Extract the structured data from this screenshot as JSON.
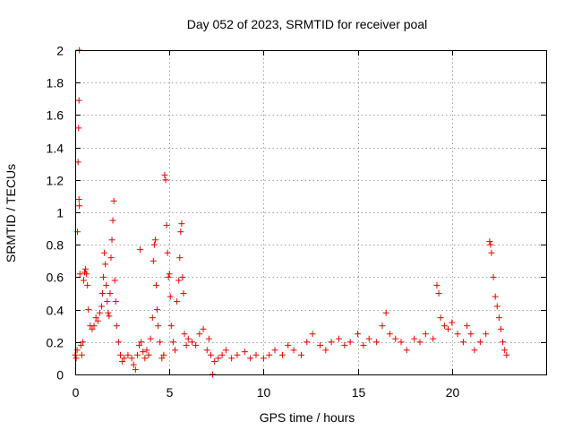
{
  "chart_data": {
    "type": "scatter",
    "title": "Day 052 of 2023, SRMTID for receiver poal",
    "xlabel": "GPS time / hours",
    "ylabel": "SRMTID / TECUs",
    "xlim": [
      0,
      25
    ],
    "ylim": [
      0,
      2
    ],
    "xticks": [
      0,
      5,
      10,
      15,
      20
    ],
    "yticks": [
      0,
      0.2,
      0.4,
      0.6,
      0.8,
      1,
      1.2,
      1.4,
      1.6,
      1.8,
      2
    ],
    "ytick_labels": [
      "0",
      "0.2",
      "0.4",
      "0.6",
      "0.8",
      "1",
      "1.2",
      "1.4",
      "1.6",
      "1.8",
      "2"
    ],
    "grid": true,
    "marker": "+",
    "color": "#ee0000",
    "series": [
      {
        "name": "SRMTID",
        "description": "scatter of SRMTID values vs GPS time; values approximated from the plotted points",
        "points": [
          [
            0.0,
            0.12
          ],
          [
            0.05,
            0.1
          ],
          [
            0.1,
            0.15
          ],
          [
            0.12,
            0.88
          ],
          [
            0.15,
            1.31
          ],
          [
            0.18,
            1.52
          ],
          [
            0.2,
            1.69
          ],
          [
            0.22,
            2.0
          ],
          [
            0.2,
            1.08
          ],
          [
            0.22,
            1.04
          ],
          [
            0.25,
            0.62
          ],
          [
            0.3,
            0.18
          ],
          [
            0.35,
            0.12
          ],
          [
            0.4,
            0.2
          ],
          [
            0.45,
            0.58
          ],
          [
            0.5,
            0.63
          ],
          [
            0.55,
            0.65
          ],
          [
            0.6,
            0.62
          ],
          [
            0.65,
            0.55
          ],
          [
            0.7,
            0.4
          ],
          [
            0.8,
            0.3
          ],
          [
            0.9,
            0.28
          ],
          [
            1.0,
            0.3
          ],
          [
            1.1,
            0.35
          ],
          [
            1.2,
            0.33
          ],
          [
            1.3,
            0.38
          ],
          [
            1.4,
            0.42
          ],
          [
            1.45,
            0.5
          ],
          [
            1.5,
            0.6
          ],
          [
            1.55,
            0.75
          ],
          [
            1.6,
            0.68
          ],
          [
            1.65,
            0.55
          ],
          [
            1.7,
            0.45
          ],
          [
            1.75,
            0.38
          ],
          [
            1.8,
            0.36
          ],
          [
            1.85,
            0.5
          ],
          [
            1.9,
            0.72
          ],
          [
            1.95,
            0.83
          ],
          [
            2.0,
            0.95
          ],
          [
            2.05,
            1.07
          ],
          [
            2.1,
            0.58
          ],
          [
            2.15,
            0.45
          ],
          [
            2.2,
            0.3
          ],
          [
            2.3,
            0.2
          ],
          [
            2.4,
            0.12
          ],
          [
            2.5,
            0.08
          ],
          [
            2.6,
            0.1
          ],
          [
            2.8,
            0.12
          ],
          [
            3.0,
            0.1
          ],
          [
            3.1,
            0.06
          ],
          [
            3.2,
            0.03
          ],
          [
            3.3,
            0.12
          ],
          [
            3.4,
            0.18
          ],
          [
            3.45,
            0.77
          ],
          [
            3.5,
            0.2
          ],
          [
            3.6,
            0.14
          ],
          [
            3.7,
            0.1
          ],
          [
            3.8,
            0.15
          ],
          [
            3.9,
            0.12
          ],
          [
            4.0,
            0.22
          ],
          [
            4.1,
            0.35
          ],
          [
            4.15,
            0.7
          ],
          [
            4.2,
            0.8
          ],
          [
            4.25,
            0.83
          ],
          [
            4.3,
            0.55
          ],
          [
            4.35,
            0.4
          ],
          [
            4.4,
            0.3
          ],
          [
            4.5,
            0.2
          ],
          [
            4.6,
            0.1
          ],
          [
            4.7,
            0.12
          ],
          [
            4.75,
            1.23
          ],
          [
            4.8,
            1.2
          ],
          [
            4.85,
            0.92
          ],
          [
            4.9,
            0.75
          ],
          [
            4.95,
            0.6
          ],
          [
            5.0,
            0.62
          ],
          [
            5.05,
            0.48
          ],
          [
            5.1,
            0.3
          ],
          [
            5.2,
            0.2
          ],
          [
            5.3,
            0.15
          ],
          [
            5.4,
            0.45
          ],
          [
            5.5,
            0.58
          ],
          [
            5.55,
            0.72
          ],
          [
            5.6,
            0.88
          ],
          [
            5.65,
            0.93
          ],
          [
            5.7,
            0.6
          ],
          [
            5.75,
            0.5
          ],
          [
            5.8,
            0.25
          ],
          [
            5.9,
            0.18
          ],
          [
            6.0,
            0.22
          ],
          [
            6.2,
            0.2
          ],
          [
            6.4,
            0.18
          ],
          [
            6.6,
            0.25
          ],
          [
            6.8,
            0.28
          ],
          [
            7.0,
            0.15
          ],
          [
            7.1,
            0.22
          ],
          [
            7.2,
            0.12
          ],
          [
            7.3,
            0.0
          ],
          [
            7.4,
            0.08
          ],
          [
            7.6,
            0.1
          ],
          [
            7.8,
            0.12
          ],
          [
            8.0,
            0.15
          ],
          [
            8.3,
            0.1
          ],
          [
            8.6,
            0.12
          ],
          [
            9.0,
            0.14
          ],
          [
            9.3,
            0.1
          ],
          [
            9.6,
            0.12
          ],
          [
            10.0,
            0.1
          ],
          [
            10.3,
            0.12
          ],
          [
            10.6,
            0.15
          ],
          [
            11.0,
            0.12
          ],
          [
            11.3,
            0.18
          ],
          [
            11.6,
            0.15
          ],
          [
            12.0,
            0.12
          ],
          [
            12.3,
            0.2
          ],
          [
            12.6,
            0.25
          ],
          [
            13.0,
            0.18
          ],
          [
            13.3,
            0.15
          ],
          [
            13.6,
            0.2
          ],
          [
            14.0,
            0.22
          ],
          [
            14.3,
            0.18
          ],
          [
            14.6,
            0.2
          ],
          [
            15.0,
            0.25
          ],
          [
            15.3,
            0.18
          ],
          [
            15.6,
            0.22
          ],
          [
            16.0,
            0.2
          ],
          [
            16.3,
            0.3
          ],
          [
            16.5,
            0.38
          ],
          [
            16.7,
            0.25
          ],
          [
            17.0,
            0.22
          ],
          [
            17.3,
            0.2
          ],
          [
            17.6,
            0.15
          ],
          [
            18.0,
            0.22
          ],
          [
            18.3,
            0.2
          ],
          [
            18.6,
            0.25
          ],
          [
            19.0,
            0.22
          ],
          [
            19.2,
            0.55
          ],
          [
            19.3,
            0.5
          ],
          [
            19.4,
            0.35
          ],
          [
            19.6,
            0.3
          ],
          [
            19.8,
            0.28
          ],
          [
            20.0,
            0.32
          ],
          [
            20.3,
            0.25
          ],
          [
            20.6,
            0.2
          ],
          [
            20.8,
            0.3
          ],
          [
            21.0,
            0.25
          ],
          [
            21.2,
            0.15
          ],
          [
            21.5,
            0.2
          ],
          [
            21.8,
            0.25
          ],
          [
            22.0,
            0.82
          ],
          [
            22.05,
            0.8
          ],
          [
            22.1,
            0.75
          ],
          [
            22.2,
            0.6
          ],
          [
            22.3,
            0.48
          ],
          [
            22.4,
            0.42
          ],
          [
            22.5,
            0.35
          ],
          [
            22.6,
            0.28
          ],
          [
            22.7,
            0.2
          ],
          [
            22.8,
            0.15
          ],
          [
            22.9,
            0.12
          ]
        ]
      }
    ]
  }
}
